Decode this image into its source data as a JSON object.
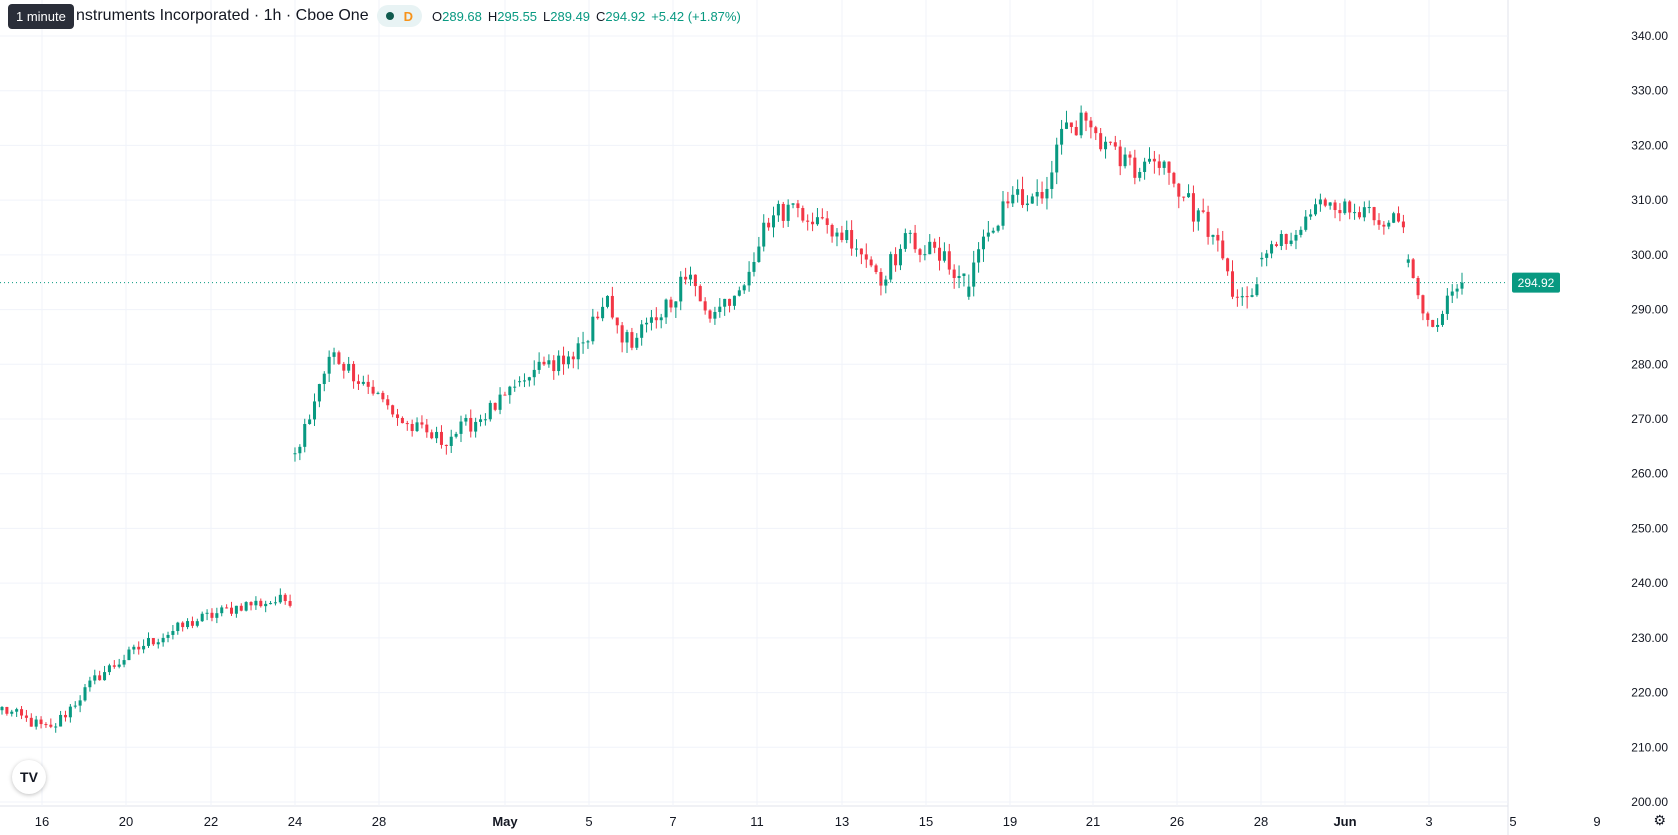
{
  "header": {
    "title": "nstruments Incorporated · 1h · Cboe One",
    "d_label": "D",
    "open_label": "O",
    "open": "289.68",
    "high_label": "H",
    "high": "295.55",
    "low_label": "L",
    "low": "289.49",
    "close_label": "C",
    "close": "294.92",
    "change": "+5.42 (+1.87%)"
  },
  "tooltip": "1 minute",
  "logo_text": "TV",
  "colors": {
    "up": "#089981",
    "down": "#f23645",
    "price_line": "#089981"
  },
  "chart_data": {
    "type": "candlestick",
    "ylim": [
      200,
      340
    ],
    "yticks": [
      "340.00",
      "330.00",
      "320.00",
      "310.00",
      "300.00",
      "290.00",
      "280.00",
      "270.00",
      "260.00",
      "250.00",
      "240.00",
      "230.00",
      "220.00",
      "210.00",
      "200.00"
    ],
    "xticks": [
      "16",
      "20",
      "22",
      "24",
      "28",
      "May",
      "5",
      "7",
      "11",
      "13",
      "15",
      "19",
      "21",
      "26",
      "28",
      "Jun",
      "3",
      "5",
      "9"
    ],
    "last_price": 294.92,
    "last_price_label": "294.92",
    "segments": [
      {
        "n": 60,
        "path": [
          217,
          213,
          223,
          229,
          233,
          236,
          237
        ],
        "noise": 1.2
      },
      {
        "n": 46,
        "path": [
          263,
          282,
          276,
          269,
          266,
          270,
          275
        ],
        "noise": 1.6
      },
      {
        "n": 92,
        "path": [
          275,
          280,
          281,
          292,
          283,
          289,
          296,
          289,
          295,
          307,
          309,
          305,
          303,
          296,
          303,
          300,
          296
        ],
        "noise": 2.0
      },
      {
        "n": 60,
        "path": [
          296,
          305,
          311,
          309,
          323,
          324,
          318,
          316,
          318,
          310,
          305,
          293,
          293
        ],
        "noise": 2.4
      },
      {
        "n": 30,
        "path": [
          301,
          304,
          309,
          309,
          307,
          306
        ],
        "noise": 1.6
      },
      {
        "n": 12,
        "path": [
          298,
          291,
          287,
          293,
          295
        ],
        "noise": 1.4
      }
    ]
  }
}
